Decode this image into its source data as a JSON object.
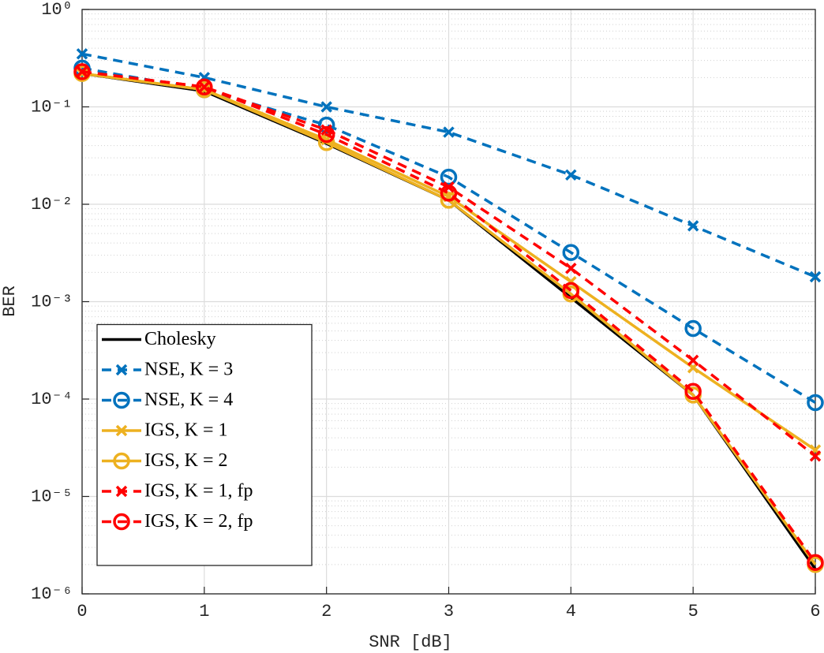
{
  "chart_data": {
    "type": "line",
    "xlabel": "SNR [dB]",
    "ylabel": "BER",
    "x": [
      0,
      1,
      2,
      3,
      4,
      5,
      6
    ],
    "xlim": [
      0,
      6
    ],
    "xticks": [
      0,
      1,
      2,
      3,
      4,
      5,
      6
    ],
    "ylim": [
      1e-06,
      1
    ],
    "ylog": true,
    "yticks": [
      {
        "value": 1,
        "label": "10⁰"
      },
      {
        "value": 0.1,
        "label": "10⁻¹"
      },
      {
        "value": 0.01,
        "label": "10⁻²"
      },
      {
        "value": 0.001,
        "label": "10⁻³"
      },
      {
        "value": 0.0001,
        "label": "10⁻⁴"
      },
      {
        "value": 1e-05,
        "label": "10⁻⁵"
      },
      {
        "value": 1e-06,
        "label": "10⁻⁶"
      }
    ],
    "grid": true,
    "minor_grid": true,
    "legend_position": "lower left",
    "series": [
      {
        "name": "Cholesky",
        "color": "#000000",
        "marker": null,
        "linestyle": "solid",
        "values": [
          0.22,
          0.145,
          0.042,
          0.011,
          0.0011,
          0.00011,
          1.8e-06
        ]
      },
      {
        "name": "NSE, K = 3",
        "color": "#0072bd",
        "marker": "x",
        "linestyle": "dashed",
        "values": [
          0.35,
          0.2,
          0.1,
          0.055,
          0.02,
          0.006,
          0.0018
        ]
      },
      {
        "name": "NSE, K = 4",
        "color": "#0072bd",
        "marker": "o",
        "linestyle": "dashed",
        "values": [
          0.25,
          0.15,
          0.065,
          0.019,
          0.0032,
          0.00053,
          9.2e-05
        ]
      },
      {
        "name": "IGS, K = 1",
        "color": "#edb120",
        "marker": "x",
        "linestyle": "solid",
        "values": [
          0.22,
          0.15,
          0.046,
          0.012,
          0.0016,
          0.00021,
          3e-05
        ]
      },
      {
        "name": "IGS, K = 2",
        "color": "#edb120",
        "marker": "o",
        "linestyle": "solid",
        "values": [
          0.22,
          0.15,
          0.043,
          0.011,
          0.0012,
          0.00011,
          2e-06
        ]
      },
      {
        "name": "IGS, K = 1, fp",
        "color": "#ff0000",
        "marker": "x",
        "linestyle": "dashed",
        "values": [
          0.23,
          0.16,
          0.058,
          0.015,
          0.0022,
          0.00025,
          2.6e-05
        ]
      },
      {
        "name": "IGS, K = 2, fp",
        "color": "#ff0000",
        "marker": "o",
        "linestyle": "dashed",
        "values": [
          0.23,
          0.16,
          0.052,
          0.013,
          0.0013,
          0.00012,
          2.1e-06
        ]
      }
    ]
  }
}
